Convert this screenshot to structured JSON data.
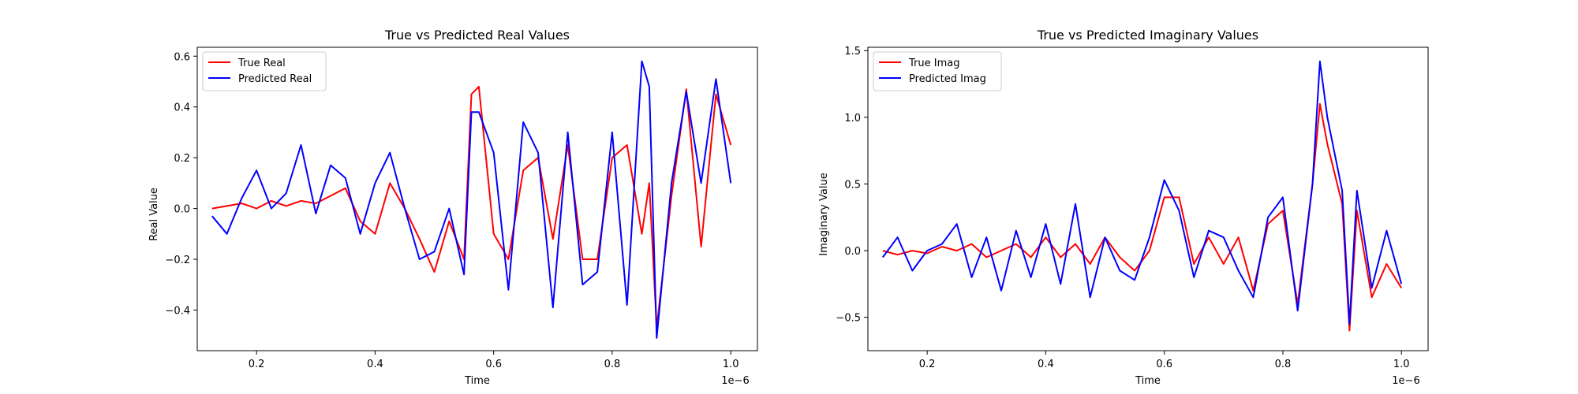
{
  "chart_data": [
    {
      "type": "line",
      "title": "True vs Predicted Real Values",
      "xlabel": "Time",
      "ylabel": "Real Value",
      "x_offset_label": "1e−6",
      "xlim": [
        0.1,
        1.045
      ],
      "ylim": [
        -0.56,
        0.635
      ],
      "xticks": [
        0.2,
        0.4,
        0.6,
        0.8,
        1.0
      ],
      "xtick_labels": [
        "0.2",
        "0.4",
        "0.6",
        "0.8",
        "1.0"
      ],
      "yticks": [
        -0.4,
        -0.2,
        0.0,
        0.2,
        0.4,
        0.6
      ],
      "ytick_labels": [
        "−0.4",
        "−0.2",
        "0.0",
        "0.2",
        "0.4",
        "0.6"
      ],
      "legend_position": "top-left",
      "x": [
        0.125,
        0.15,
        0.175,
        0.2,
        0.225,
        0.25,
        0.275,
        0.3,
        0.325,
        0.35,
        0.375,
        0.4,
        0.425,
        0.45,
        0.475,
        0.5,
        0.525,
        0.55,
        0.5625,
        0.575,
        0.6,
        0.625,
        0.65,
        0.675,
        0.7,
        0.725,
        0.75,
        0.775,
        0.8,
        0.825,
        0.85,
        0.8625,
        0.875,
        0.9,
        0.925,
        0.95,
        0.975,
        1.0
      ],
      "series": [
        {
          "name": "True Real",
          "color": "#ff0000",
          "values": [
            0.0,
            0.01,
            0.02,
            0.0,
            0.03,
            0.01,
            0.03,
            0.02,
            0.05,
            0.08,
            -0.05,
            -0.1,
            0.1,
            0.0,
            -0.12,
            -0.25,
            -0.05,
            -0.2,
            0.45,
            0.48,
            -0.1,
            -0.2,
            0.15,
            0.2,
            -0.12,
            0.25,
            -0.2,
            -0.2,
            0.2,
            0.25,
            -0.1,
            0.1,
            -0.47,
            0.05,
            0.47,
            -0.15,
            0.45,
            0.25
          ]
        },
        {
          "name": "Predicted Real",
          "color": "#0000ff",
          "values": [
            -0.03,
            -0.1,
            0.04,
            0.15,
            0.0,
            0.06,
            0.25,
            -0.02,
            0.17,
            0.12,
            -0.1,
            0.1,
            0.22,
            0.0,
            -0.2,
            -0.17,
            0.0,
            -0.26,
            0.38,
            0.38,
            0.22,
            -0.32,
            0.34,
            0.22,
            -0.39,
            0.3,
            -0.3,
            -0.25,
            0.3,
            -0.38,
            0.58,
            0.48,
            -0.51,
            0.1,
            0.46,
            0.1,
            0.51,
            0.1
          ]
        }
      ]
    },
    {
      "type": "line",
      "title": "True vs Predicted Imaginary Values",
      "xlabel": "Time",
      "ylabel": "Imaginary Value",
      "x_offset_label": "1e−6",
      "xlim": [
        0.1,
        1.045
      ],
      "ylim": [
        -0.75,
        1.525
      ],
      "xticks": [
        0.2,
        0.4,
        0.6,
        0.8,
        1.0
      ],
      "xtick_labels": [
        "0.2",
        "0.4",
        "0.6",
        "0.8",
        "1.0"
      ],
      "yticks": [
        -0.5,
        0.0,
        0.5,
        1.0,
        1.5
      ],
      "ytick_labels": [
        "−0.5",
        "0.0",
        "0.5",
        "1.0",
        "1.5"
      ],
      "legend_position": "top-left",
      "x": [
        0.125,
        0.15,
        0.175,
        0.2,
        0.225,
        0.25,
        0.275,
        0.3,
        0.325,
        0.35,
        0.375,
        0.4,
        0.425,
        0.45,
        0.475,
        0.5,
        0.525,
        0.55,
        0.575,
        0.6,
        0.625,
        0.65,
        0.675,
        0.7,
        0.725,
        0.75,
        0.775,
        0.8,
        0.825,
        0.85,
        0.8625,
        0.875,
        0.9,
        0.9125,
        0.925,
        0.95,
        0.975,
        1.0
      ],
      "series": [
        {
          "name": "True Imag",
          "color": "#ff0000",
          "values": [
            0.0,
            -0.03,
            0.0,
            -0.02,
            0.03,
            0.0,
            0.05,
            -0.05,
            0.0,
            0.05,
            -0.05,
            0.1,
            -0.05,
            0.05,
            -0.1,
            0.1,
            -0.05,
            -0.15,
            0.0,
            0.4,
            0.4,
            -0.1,
            0.1,
            -0.1,
            0.1,
            -0.3,
            0.2,
            0.3,
            -0.4,
            0.5,
            1.1,
            0.8,
            0.35,
            -0.6,
            0.3,
            -0.35,
            -0.1,
            -0.28
          ]
        },
        {
          "name": "Predicted Imag",
          "color": "#0000ff",
          "values": [
            -0.05,
            0.1,
            -0.15,
            0.0,
            0.05,
            0.2,
            -0.2,
            0.1,
            -0.3,
            0.15,
            -0.2,
            0.2,
            -0.25,
            0.35,
            -0.35,
            0.1,
            -0.15,
            -0.22,
            0.1,
            0.53,
            0.3,
            -0.2,
            0.15,
            0.1,
            -0.15,
            -0.35,
            0.25,
            0.4,
            -0.45,
            0.5,
            1.42,
            1.0,
            0.45,
            -0.55,
            0.45,
            -0.28,
            0.15,
            -0.25
          ]
        }
      ]
    }
  ]
}
